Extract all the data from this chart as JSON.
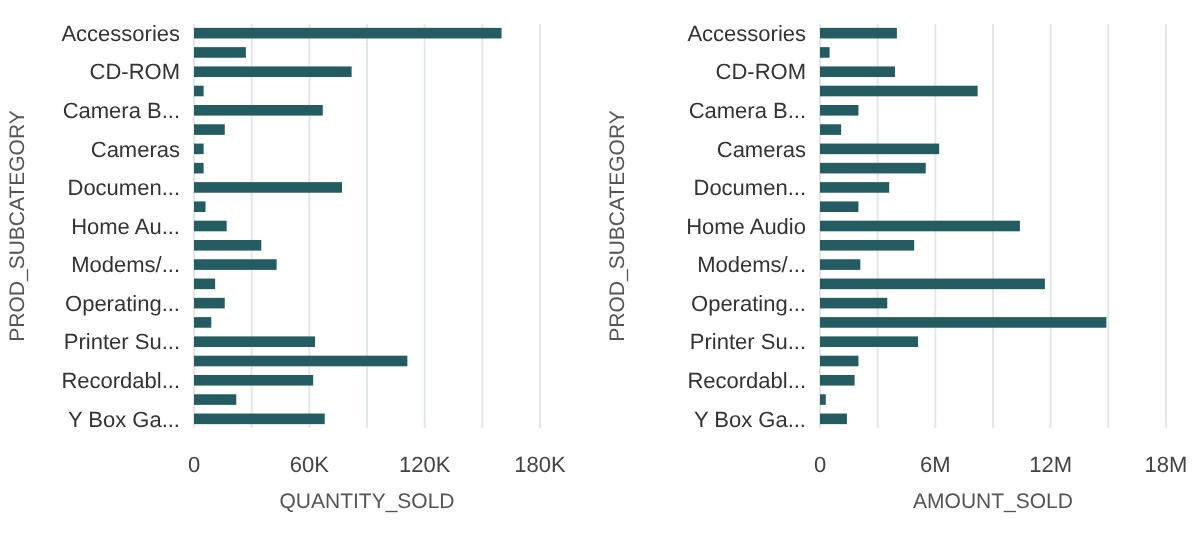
{
  "chart_data": [
    {
      "type": "bar",
      "orientation": "horizontal",
      "xlabel": "QUANTITY_SOLD",
      "ylabel": "PROD_SUBCATEGORY",
      "categories": [
        "Accessories",
        null,
        "CD-ROM",
        null,
        "Camera B...",
        null,
        "Cameras",
        null,
        "Documen...",
        null,
        "Home Au...",
        null,
        "Modems/...",
        null,
        "Operating...",
        null,
        "Printer Su...",
        null,
        "Recordabl...",
        null,
        "Y Box Ga..."
      ],
      "values": [
        160000,
        27000,
        82000,
        5000,
        67000,
        16000,
        5000,
        5000,
        77000,
        6000,
        17000,
        35000,
        43000,
        11000,
        16000,
        9000,
        63000,
        111000,
        62000,
        22000,
        68000
      ],
      "color": "#255c62",
      "xlim": [
        0,
        180000
      ],
      "xticks": [
        0,
        {
          "value": 30000,
          "label": null
        },
        {
          "value": 60000,
          "label": "60K"
        },
        {
          "value": 90000,
          "label": null
        },
        {
          "value": 120000,
          "label": "120K"
        },
        {
          "value": 150000,
          "label": null
        },
        {
          "value": 180000,
          "label": "180K"
        }
      ],
      "grid": "x"
    },
    {
      "type": "bar",
      "orientation": "horizontal",
      "xlabel": "AMOUNT_SOLD",
      "ylabel": "PROD_SUBCATEGORY",
      "categories": [
        "Accessories",
        null,
        "CD-ROM",
        null,
        "Camera B...",
        null,
        "Cameras",
        null,
        "Documen...",
        null,
        "Home Audio",
        null,
        "Modems/...",
        null,
        "Operating...",
        null,
        "Printer Su...",
        null,
        "Recordabl...",
        null,
        "Y Box Ga..."
      ],
      "values": [
        4000000,
        500000,
        3900000,
        8200000,
        2000000,
        1100000,
        6200000,
        5500000,
        3600000,
        2000000,
        10400000,
        4900000,
        2100000,
        11700000,
        3500000,
        14900000,
        5100000,
        2000000,
        1800000,
        300000,
        1400000
      ],
      "color": "#255c62",
      "xlim": [
        0,
        18000000
      ],
      "xticks": [
        0,
        {
          "value": 3000000,
          "label": null
        },
        {
          "value": 6000000,
          "label": "6M"
        },
        {
          "value": 9000000,
          "label": null
        },
        {
          "value": 12000000,
          "label": "12M"
        },
        {
          "value": 15000000,
          "label": null
        },
        {
          "value": 18000000,
          "label": "18M"
        }
      ],
      "grid": "x"
    }
  ]
}
